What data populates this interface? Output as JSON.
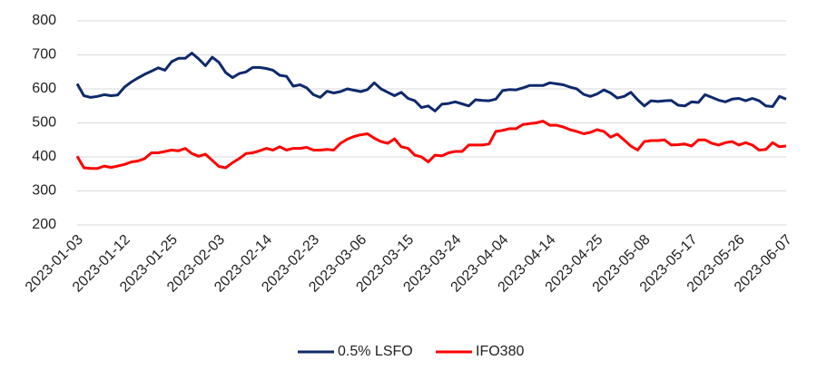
{
  "chart_data": {
    "type": "line",
    "categories": [
      "2023-01-03",
      null,
      null,
      null,
      null,
      null,
      null,
      "2023-01-12",
      null,
      null,
      null,
      null,
      null,
      null,
      "2023-01-25",
      null,
      null,
      null,
      null,
      null,
      null,
      "2023-02-03",
      null,
      null,
      null,
      null,
      null,
      null,
      "2023-02-14",
      null,
      null,
      null,
      null,
      null,
      null,
      "2023-02-23",
      null,
      null,
      null,
      null,
      null,
      null,
      "2023-03-06",
      null,
      null,
      null,
      null,
      null,
      null,
      "2023-03-15",
      null,
      null,
      null,
      null,
      null,
      null,
      "2023-03-24",
      null,
      null,
      null,
      null,
      null,
      null,
      "2023-04-04",
      null,
      null,
      null,
      null,
      null,
      null,
      "2023-04-14",
      null,
      null,
      null,
      null,
      null,
      null,
      "2023-04-25",
      null,
      null,
      null,
      null,
      null,
      null,
      "2023-05-08",
      null,
      null,
      null,
      null,
      null,
      null,
      "2023-05-17",
      null,
      null,
      null,
      null,
      null,
      null,
      "2023-05-26",
      null,
      null,
      null,
      null,
      null,
      null,
      "2023-06-07"
    ],
    "series": [
      {
        "name": "0.5% LSFO",
        "color": "#0e2a6b",
        "values": [
          615,
          580,
          575,
          578,
          583,
          580,
          582,
          605,
          620,
          632,
          643,
          652,
          662,
          655,
          680,
          690,
          690,
          705,
          688,
          668,
          693,
          678,
          648,
          633,
          645,
          650,
          663,
          663,
          660,
          655,
          640,
          637,
          608,
          612,
          603,
          583,
          575,
          593,
          588,
          592,
          600,
          596,
          592,
          598,
          618,
          600,
          590,
          580,
          590,
          572,
          565,
          545,
          550,
          535,
          555,
          557,
          562,
          556,
          550,
          568,
          566,
          565,
          570,
          595,
          598,
          597,
          603,
          610,
          610,
          610,
          618,
          615,
          612,
          605,
          600,
          584,
          578,
          585,
          597,
          588,
          573,
          578,
          590,
          568,
          550,
          565,
          563,
          565,
          566,
          552,
          550,
          562,
          560,
          583,
          575,
          567,
          562,
          570,
          572,
          565,
          572,
          565,
          550,
          548,
          578,
          570
        ]
      },
      {
        "name": "IFO380",
        "color": "#ff0000",
        "values": [
          402,
          368,
          366,
          366,
          373,
          369,
          373,
          378,
          385,
          388,
          395,
          412,
          412,
          416,
          420,
          418,
          425,
          410,
          402,
          408,
          390,
          372,
          368,
          383,
          395,
          410,
          412,
          418,
          425,
          420,
          430,
          420,
          425,
          425,
          428,
          420,
          420,
          422,
          420,
          440,
          452,
          460,
          465,
          468,
          455,
          445,
          440,
          453,
          430,
          425,
          405,
          400,
          385,
          405,
          403,
          412,
          416,
          416,
          435,
          435,
          435,
          438,
          475,
          478,
          483,
          483,
          495,
          498,
          500,
          505,
          493,
          493,
          488,
          480,
          475,
          468,
          472,
          480,
          475,
          458,
          467,
          450,
          432,
          420,
          445,
          448,
          448,
          450,
          435,
          436,
          438,
          432,
          450,
          450,
          440,
          435,
          442,
          445,
          435,
          442,
          435,
          420,
          422,
          442,
          430,
          432
        ]
      }
    ],
    "ylim": [
      200,
      800
    ],
    "yticks": [
      200,
      300,
      400,
      500,
      600,
      700,
      800
    ],
    "grid": true,
    "legend": "bottom"
  }
}
